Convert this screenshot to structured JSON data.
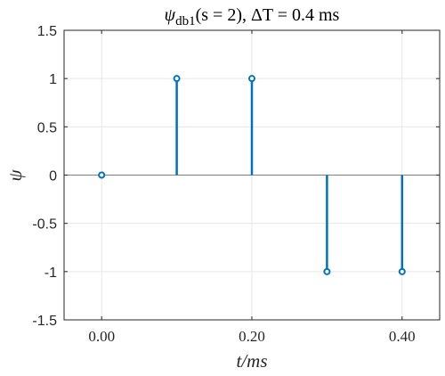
{
  "chart_data": {
    "type": "stem",
    "title": "ψdb1(s = 2), ΔT = 0.4 ms",
    "title_parts": {
      "symbol": "ψ",
      "subscript": "db1",
      "arg": "(s = 2), ΔT = 0.4 ms"
    },
    "xlabel": "t/ms",
    "ylabel": "ψ",
    "x": [
      0.0,
      0.1,
      0.2,
      0.3,
      0.4
    ],
    "y": [
      0,
      1,
      1,
      -1,
      -1
    ],
    "xlim": [
      -0.05,
      0.45
    ],
    "ylim": [
      -1.5,
      1.5
    ],
    "xticks": [
      0.0,
      0.2,
      0.4
    ],
    "xtick_labels": [
      "0.00",
      "0.20",
      "0.40"
    ],
    "yticks": [
      -1.5,
      -1,
      -0.5,
      0,
      0.5,
      1,
      1.5
    ],
    "ytick_labels": [
      "-1.5",
      "-1",
      "-0.5",
      "0",
      "0.5",
      "1",
      "1.5"
    ],
    "baseline": 0,
    "grid": true,
    "colors": {
      "stem": "#0072BD",
      "grid": "#e6e6e6",
      "axis": "#262626",
      "baseline": "#808080"
    }
  }
}
